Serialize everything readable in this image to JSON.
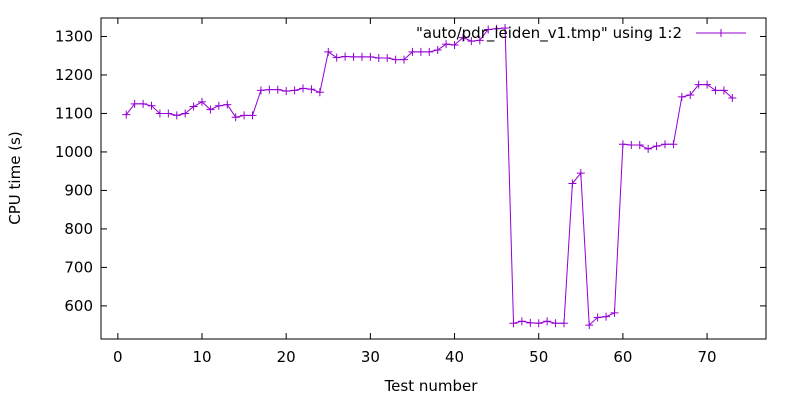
{
  "chart_data": {
    "type": "line",
    "title": "",
    "xlabel": "Test number",
    "ylabel": "CPU time (s)",
    "xlim": [
      -2,
      77
    ],
    "ylim": [
      514,
      1348
    ],
    "xticks": [
      0,
      10,
      20,
      30,
      40,
      50,
      60,
      70
    ],
    "yticks": [
      600,
      700,
      800,
      900,
      1000,
      1100,
      1200,
      1300
    ],
    "grid": false,
    "legend_position": "top-right",
    "series": [
      {
        "name": "\"auto/pdr_leiden_v1.tmp\" using 1:2",
        "color": "#9400d3",
        "marker": "plus",
        "x": [
          1,
          2,
          3,
          4,
          5,
          6,
          7,
          8,
          9,
          10,
          11,
          12,
          13,
          14,
          15,
          16,
          17,
          18,
          19,
          20,
          21,
          22,
          23,
          24,
          25,
          26,
          27,
          28,
          29,
          30,
          31,
          32,
          33,
          34,
          35,
          36,
          37,
          38,
          39,
          40,
          41,
          42,
          43,
          44,
          45,
          46,
          47,
          48,
          49,
          50,
          51,
          52,
          53,
          54,
          55,
          56,
          57,
          58,
          59,
          60,
          61,
          62,
          63,
          64,
          65,
          66,
          67,
          68,
          69,
          70,
          71,
          72,
          73
        ],
        "y": [
          1097,
          1125,
          1125,
          1120,
          1100,
          1100,
          1095,
          1100,
          1118,
          1130,
          1110,
          1120,
          1123,
          1090,
          1095,
          1095,
          1160,
          1162,
          1162,
          1158,
          1160,
          1165,
          1163,
          1155,
          1260,
          1245,
          1248,
          1247,
          1247,
          1247,
          1244,
          1244,
          1240,
          1240,
          1260,
          1260,
          1260,
          1265,
          1280,
          1278,
          1297,
          1288,
          1290,
          1318,
          1320,
          1322,
          555,
          560,
          556,
          555,
          560,
          555,
          555,
          918,
          945,
          550,
          570,
          572,
          582,
          1020,
          1018,
          1018,
          1008,
          1015,
          1020,
          1020,
          1143,
          1148,
          1175,
          1175,
          1160,
          1160,
          1140
        ]
      }
    ]
  }
}
